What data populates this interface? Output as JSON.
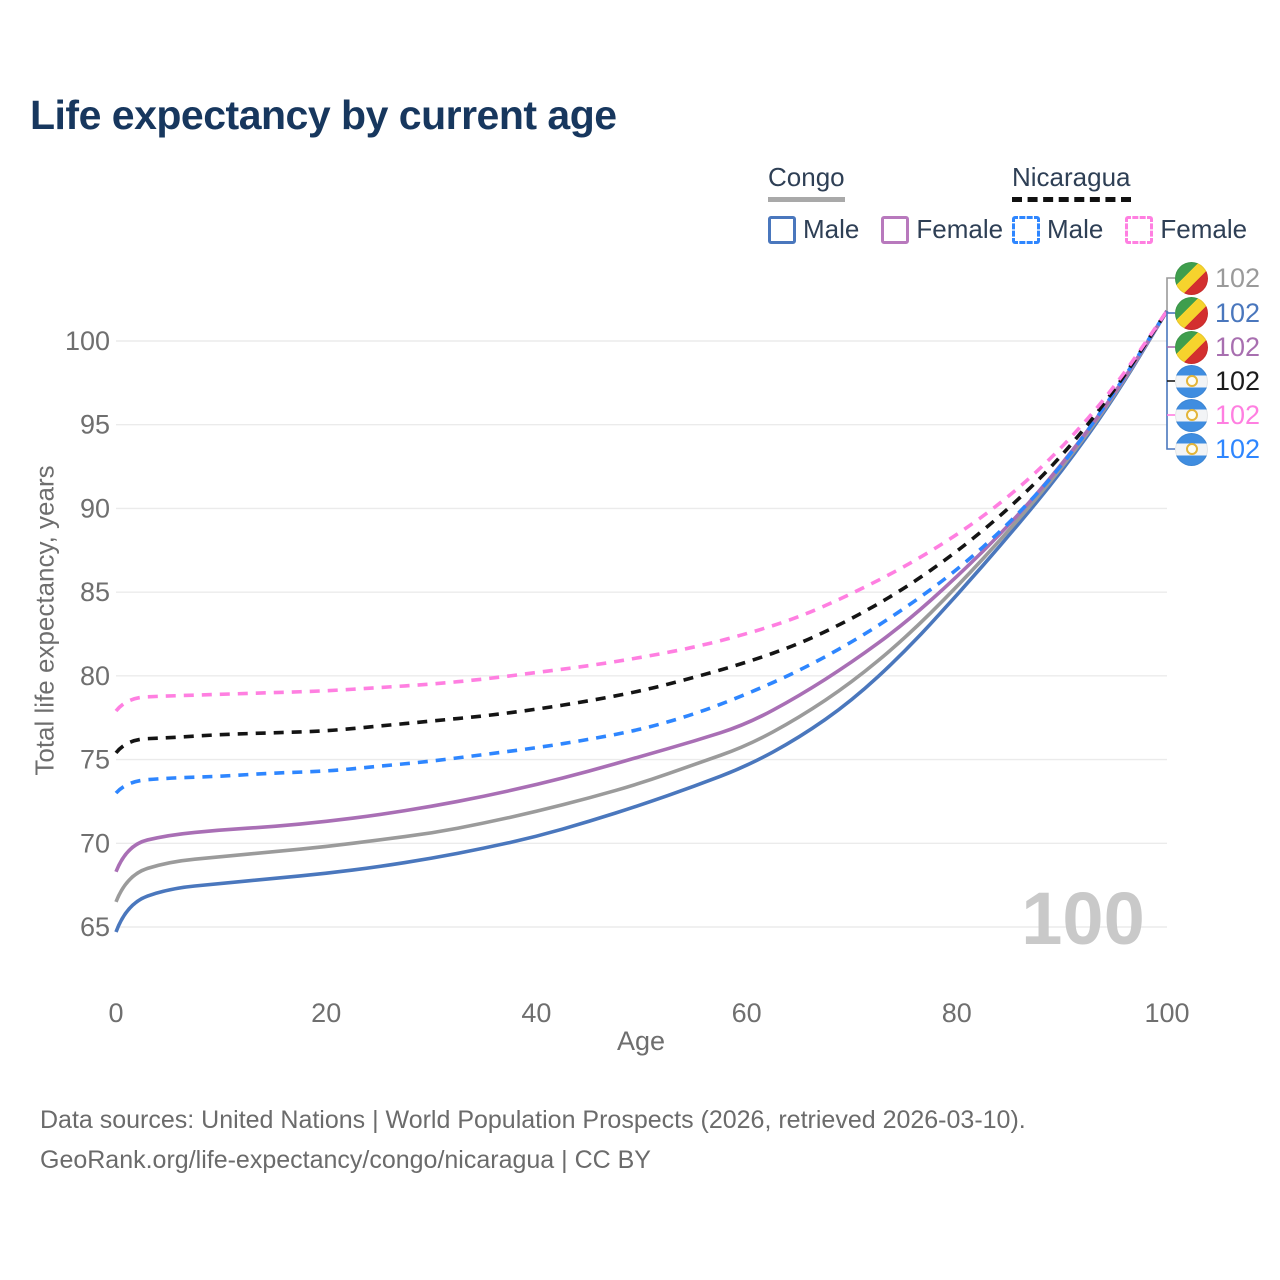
{
  "title": "Life expectancy by current age",
  "legend": {
    "groups": [
      {
        "label": "Congo",
        "items": [
          {
            "label": "Male"
          },
          {
            "label": "Female"
          }
        ]
      },
      {
        "label": "Nicaragua",
        "items": [
          {
            "label": "Male"
          },
          {
            "label": "Female"
          }
        ]
      }
    ]
  },
  "watermark": "100",
  "footer": {
    "line1": "Data sources: United Nations | World Population Prospects (2026, retrieved 2026-03-10).",
    "line2": "GeoRank.org/life-expectancy/congo/nicaragua | CC BY"
  },
  "end_labels": [
    {
      "flag": "congo",
      "value": "102",
      "color": "#9a9a9a"
    },
    {
      "flag": "congo",
      "value": "102",
      "color": "#4a77bd"
    },
    {
      "flag": "congo",
      "value": "102",
      "color": "#a86fb0"
    },
    {
      "flag": "nicaragua",
      "value": "102",
      "color": "#1c1c1c"
    },
    {
      "flag": "nicaragua",
      "value": "102",
      "color": "#ff7fe1"
    },
    {
      "flag": "nicaragua",
      "value": "102",
      "color": "#2e86ff"
    }
  ],
  "chart_data": {
    "type": "line",
    "title": "Life expectancy by current age",
    "xlabel": "Age",
    "ylabel": "Total life expectancy, years",
    "x_ticks": [
      0,
      20,
      40,
      60,
      80,
      100
    ],
    "y_ticks": [
      65,
      70,
      75,
      80,
      85,
      90,
      95,
      100
    ],
    "xlim": [
      0,
      100
    ],
    "ylim": [
      64,
      102.5
    ],
    "grid": "horizontal",
    "legend_position": "top-right",
    "x": [
      0,
      1,
      5,
      10,
      15,
      20,
      25,
      30,
      35,
      40,
      45,
      50,
      55,
      60,
      65,
      70,
      75,
      80,
      85,
      90,
      95,
      100
    ],
    "series": [
      {
        "name": "Congo Male",
        "country": "Congo",
        "sex": "Male",
        "style": "solid",
        "color": "#4a77bd",
        "values": [
          64.7,
          66.4,
          67.3,
          67.6,
          67.9,
          68.2,
          68.6,
          69.1,
          69.7,
          70.4,
          71.3,
          72.3,
          73.4,
          74.6,
          76.3,
          78.5,
          81.4,
          84.8,
          88.4,
          92.2,
          96.6,
          101.8
        ]
      },
      {
        "name": "Congo Both sexes",
        "country": "Congo",
        "sex": "Both",
        "style": "solid",
        "color": "#9b9b9b",
        "values": [
          66.5,
          68.1,
          68.9,
          69.2,
          69.5,
          69.8,
          70.2,
          70.6,
          71.2,
          71.9,
          72.7,
          73.6,
          74.7,
          75.8,
          77.5,
          79.6,
          82.2,
          85.3,
          88.7,
          92.4,
          96.7,
          101.8
        ]
      },
      {
        "name": "Congo Female",
        "country": "Congo",
        "sex": "Female",
        "style": "solid",
        "color": "#a96fb5",
        "values": [
          68.3,
          69.9,
          70.5,
          70.8,
          71.0,
          71.3,
          71.7,
          72.2,
          72.8,
          73.5,
          74.3,
          75.2,
          76.1,
          77.1,
          78.8,
          80.8,
          83.1,
          85.9,
          89.0,
          92.6,
          96.8,
          101.8
        ]
      },
      {
        "name": "Nicaragua Male",
        "country": "Nicaragua",
        "sex": "Male",
        "style": "dashed",
        "color": "#2e86ff",
        "values": [
          73.0,
          73.7,
          73.9,
          74.0,
          74.2,
          74.3,
          74.6,
          74.9,
          75.3,
          75.7,
          76.2,
          76.8,
          77.7,
          78.9,
          80.3,
          82.0,
          84.0,
          86.3,
          89.1,
          92.5,
          96.9,
          101.8
        ]
      },
      {
        "name": "Nicaragua Both sexes",
        "country": "Nicaragua",
        "sex": "Both",
        "style": "dashed",
        "color": "#141414",
        "values": [
          75.4,
          76.2,
          76.3,
          76.5,
          76.6,
          76.7,
          77.0,
          77.3,
          77.6,
          78.0,
          78.5,
          79.1,
          79.9,
          80.8,
          81.9,
          83.4,
          85.2,
          87.4,
          90.0,
          93.1,
          97.0,
          101.8
        ]
      },
      {
        "name": "Nicaragua Female",
        "country": "Nicaragua",
        "sex": "Female",
        "style": "dashed",
        "color": "#ff7fe1",
        "values": [
          77.9,
          78.7,
          78.8,
          78.9,
          79.0,
          79.1,
          79.3,
          79.5,
          79.8,
          80.2,
          80.6,
          81.1,
          81.7,
          82.5,
          83.5,
          84.9,
          86.5,
          88.4,
          90.7,
          93.6,
          97.2,
          101.8
        ]
      }
    ]
  }
}
